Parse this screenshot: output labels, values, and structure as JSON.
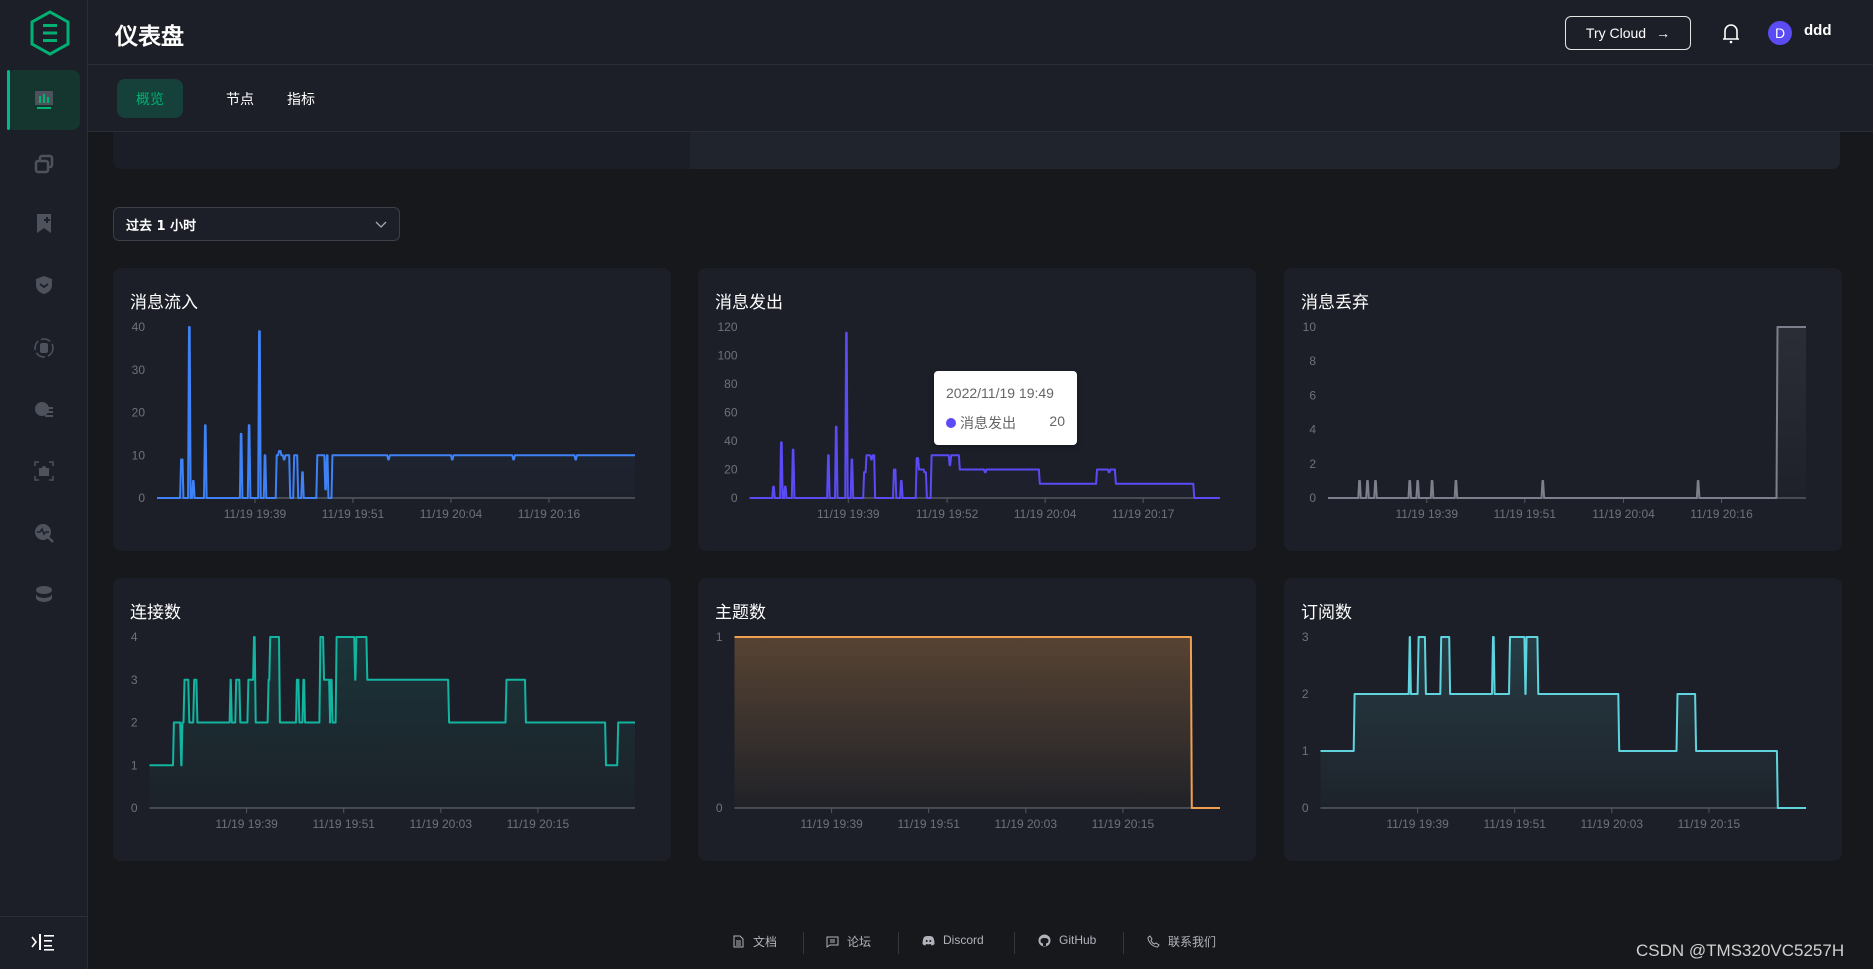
{
  "header": {
    "title": "仪表盘",
    "try_cloud": "Try Cloud",
    "try_cloud_arrow": "→",
    "avatar_letter": "D",
    "username": "ddd"
  },
  "tabs": [
    {
      "label": "概览",
      "active": true
    },
    {
      "label": "节点",
      "active": false
    },
    {
      "label": "指标",
      "active": false
    }
  ],
  "time_range": {
    "selected": "过去 1 小时"
  },
  "colors": {
    "accent": "#00b173",
    "avatar": "#5b4bf5"
  },
  "sidebar": {
    "icons": [
      "dashboard-icon",
      "clients-icon",
      "subscriptions-icon",
      "access-control-icon",
      "data-integration-icon",
      "management-icon",
      "extensions-icon",
      "diagnose-icon",
      "system-icon"
    ],
    "collapse_icon": "collapse-sidebar-icon"
  },
  "tooltip": {
    "time": "2022/11/19 19:49",
    "series": "消息发出",
    "value": "20",
    "color": "#5b4bf5"
  },
  "footer": {
    "items": [
      "文档",
      "论坛",
      "Discord",
      "GitHub",
      "联系我们"
    ]
  },
  "watermark": "CSDN @TMS320VC5257H",
  "chart_data": [
    {
      "type": "line",
      "title": "消息流入",
      "color": "#3f82f6",
      "fill_opacity": 0.12,
      "ylim": [
        0,
        40
      ],
      "yticks": [
        0,
        10,
        20,
        30,
        40
      ],
      "xlim": [
        0,
        60
      ],
      "xticks": [
        12.3,
        24.6,
        36.9,
        49.2
      ],
      "xtick_labels": [
        "11/19 19:39",
        "11/19 19:51",
        "11/19 20:04",
        "11/19 20:16"
      ],
      "steps": [
        [
          0,
          0
        ],
        [
          2.9,
          9
        ],
        [
          3.2,
          0
        ],
        [
          3.9,
          40
        ],
        [
          4.1,
          0
        ],
        [
          4.4,
          4
        ],
        [
          4.6,
          0
        ],
        [
          5.9,
          17
        ],
        [
          6.1,
          0
        ],
        [
          10.4,
          15
        ],
        [
          10.6,
          0
        ],
        [
          11.4,
          17
        ],
        [
          11.6,
          0
        ],
        [
          12.7,
          39
        ],
        [
          12.9,
          0
        ],
        [
          13.4,
          10
        ],
        [
          13.6,
          0
        ],
        [
          14.9,
          10
        ],
        [
          15.2,
          11
        ],
        [
          15.5,
          10
        ],
        [
          15.8,
          9
        ],
        [
          16.0,
          10
        ],
        [
          16.6,
          0
        ],
        [
          17.1,
          10
        ],
        [
          17.6,
          0
        ],
        [
          18.1,
          6
        ],
        [
          18.3,
          0
        ],
        [
          20.0,
          10
        ],
        [
          21.0,
          2
        ],
        [
          21.2,
          10
        ],
        [
          21.4,
          0
        ],
        [
          21.9,
          10
        ],
        [
          28.9,
          9
        ],
        [
          29.1,
          10
        ],
        [
          36.9,
          9
        ],
        [
          37.1,
          10
        ],
        [
          44.6,
          9
        ],
        [
          44.8,
          10
        ],
        [
          52.4,
          9
        ],
        [
          52.6,
          10
        ]
      ]
    },
    {
      "type": "line",
      "title": "消息发出",
      "color": "#5b4bf5",
      "fill_opacity": 0.1,
      "ylim": [
        0,
        120
      ],
      "yticks": [
        0,
        20,
        40,
        60,
        80,
        100,
        120
      ],
      "xlim": [
        0,
        60
      ],
      "xticks": [
        12.6,
        25.2,
        37.7,
        50.2
      ],
      "xtick_labels": [
        "11/19 19:39",
        "11/19 19:52",
        "11/19 20:04",
        "11/19 20:17"
      ],
      "steps": [
        [
          0,
          0
        ],
        [
          2.9,
          8
        ],
        [
          3.1,
          0
        ],
        [
          3.9,
          39
        ],
        [
          4.1,
          0
        ],
        [
          4.4,
          8
        ],
        [
          4.6,
          0
        ],
        [
          5.4,
          34
        ],
        [
          5.6,
          0
        ],
        [
          9.9,
          30
        ],
        [
          10.1,
          0
        ],
        [
          10.9,
          50
        ],
        [
          11.1,
          0
        ],
        [
          12.2,
          116
        ],
        [
          12.4,
          0
        ],
        [
          12.9,
          27
        ],
        [
          13.1,
          0
        ],
        [
          14.5,
          18
        ],
        [
          14.8,
          30
        ],
        [
          15.4,
          27
        ],
        [
          15.6,
          30
        ],
        [
          15.9,
          0
        ],
        [
          18.3,
          20
        ],
        [
          18.6,
          0
        ],
        [
          19.2,
          12
        ],
        [
          19.4,
          0
        ],
        [
          21.2,
          28
        ],
        [
          21.5,
          20
        ],
        [
          22.2,
          18
        ],
        [
          22.5,
          0
        ],
        [
          23.1,
          30
        ],
        [
          25.4,
          23
        ],
        [
          25.6,
          30
        ],
        [
          26.7,
          20
        ],
        [
          29.9,
          18
        ],
        [
          30.1,
          20
        ],
        [
          36.9,
          10
        ],
        [
          44.2,
          20
        ],
        [
          45.7,
          18
        ],
        [
          45.9,
          20
        ],
        [
          46.6,
          10
        ],
        [
          56.6,
          0
        ]
      ]
    },
    {
      "type": "line",
      "title": "消息丢弃",
      "color": "#7d808c",
      "fill_opacity": 0.15,
      "ylim": [
        0,
        10
      ],
      "yticks": [
        0,
        2,
        4,
        6,
        8,
        10
      ],
      "xlim": [
        0,
        60
      ],
      "xticks": [
        12.4,
        24.7,
        37.1,
        49.4
      ],
      "xtick_labels": [
        "11/19 19:39",
        "11/19 19:51",
        "11/19 20:04",
        "11/19 20:16"
      ],
      "steps": [
        [
          0,
          0
        ],
        [
          3.8,
          1
        ],
        [
          4.0,
          0
        ],
        [
          4.8,
          1
        ],
        [
          5.0,
          0
        ],
        [
          5.8,
          1
        ],
        [
          6.0,
          0
        ],
        [
          10.1,
          1
        ],
        [
          10.3,
          0
        ],
        [
          11.1,
          1
        ],
        [
          11.3,
          0
        ],
        [
          12.9,
          1
        ],
        [
          13.1,
          0
        ],
        [
          15.9,
          1
        ],
        [
          16.1,
          0
        ],
        [
          26.8,
          1
        ],
        [
          27.0,
          0
        ],
        [
          46.3,
          1
        ],
        [
          46.5,
          0
        ],
        [
          56.3,
          10
        ]
      ]
    },
    {
      "type": "line",
      "title": "连接数",
      "color": "#13b4a0",
      "fill_opacity": 0.14,
      "ylim": [
        0,
        4
      ],
      "yticks": [
        0,
        1,
        2,
        3,
        4
      ],
      "xlim": [
        0,
        60
      ],
      "xticks": [
        12,
        24,
        36,
        48
      ],
      "xtick_labels": [
        "11/19 19:39",
        "11/19 19:51",
        "11/19 20:03",
        "11/19 20:15"
      ],
      "steps": [
        [
          0,
          1
        ],
        [
          2.9,
          2
        ],
        [
          3.8,
          1
        ],
        [
          3.95,
          2
        ],
        [
          4.2,
          3
        ],
        [
          4.8,
          2
        ],
        [
          5.4,
          3
        ],
        [
          5.8,
          2
        ],
        [
          9.9,
          3
        ],
        [
          10.05,
          2
        ],
        [
          10.6,
          3
        ],
        [
          11.1,
          2
        ],
        [
          12.1,
          3
        ],
        [
          12.8,
          4
        ],
        [
          13.0,
          2
        ],
        [
          14.6,
          3
        ],
        [
          14.8,
          4
        ],
        [
          16.0,
          2
        ],
        [
          18.1,
          3
        ],
        [
          18.4,
          2
        ],
        [
          18.9,
          3
        ],
        [
          19.1,
          2
        ],
        [
          21.0,
          4
        ],
        [
          21.45,
          3
        ],
        [
          22.2,
          2
        ],
        [
          22.3,
          3
        ],
        [
          22.5,
          2
        ],
        [
          23.0,
          4
        ],
        [
          25.3,
          3
        ],
        [
          25.45,
          4
        ],
        [
          26.8,
          3
        ],
        [
          36.9,
          2
        ],
        [
          44.0,
          3
        ],
        [
          46.4,
          2
        ],
        [
          56.3,
          1
        ],
        [
          57.8,
          2
        ]
      ]
    },
    {
      "type": "line",
      "title": "主题数",
      "color": "#f0a050",
      "fill_opacity": 0.28,
      "ylim": [
        0,
        1
      ],
      "yticks": [
        0,
        1
      ],
      "xlim": [
        0,
        60
      ],
      "xticks": [
        12,
        24,
        36,
        48
      ],
      "xtick_labels": [
        "11/19 19:39",
        "11/19 19:51",
        "11/19 20:03",
        "11/19 20:15"
      ],
      "steps": [
        [
          0,
          1
        ],
        [
          56.4,
          0
        ]
      ]
    },
    {
      "type": "line",
      "title": "订阅数",
      "color": "#5fd3de",
      "fill_opacity": 0.16,
      "ylim": [
        0,
        3
      ],
      "yticks": [
        0,
        1,
        2,
        3
      ],
      "xlim": [
        0,
        60
      ],
      "xticks": [
        12,
        24,
        36,
        48
      ],
      "xtick_labels": [
        "11/19 19:39",
        "11/19 19:51",
        "11/19 20:03",
        "11/19 20:15"
      ],
      "steps": [
        [
          0,
          1
        ],
        [
          4.1,
          2
        ],
        [
          10.9,
          3
        ],
        [
          11.05,
          2
        ],
        [
          12.0,
          3
        ],
        [
          12.9,
          2
        ],
        [
          14.8,
          3
        ],
        [
          15.9,
          2
        ],
        [
          21.2,
          3
        ],
        [
          21.4,
          2
        ],
        [
          23.3,
          3
        ],
        [
          25.2,
          2
        ],
        [
          25.35,
          3
        ],
        [
          26.8,
          2
        ],
        [
          36.8,
          1
        ],
        [
          44.0,
          2
        ],
        [
          46.3,
          1
        ],
        [
          56.4,
          0
        ]
      ]
    }
  ]
}
